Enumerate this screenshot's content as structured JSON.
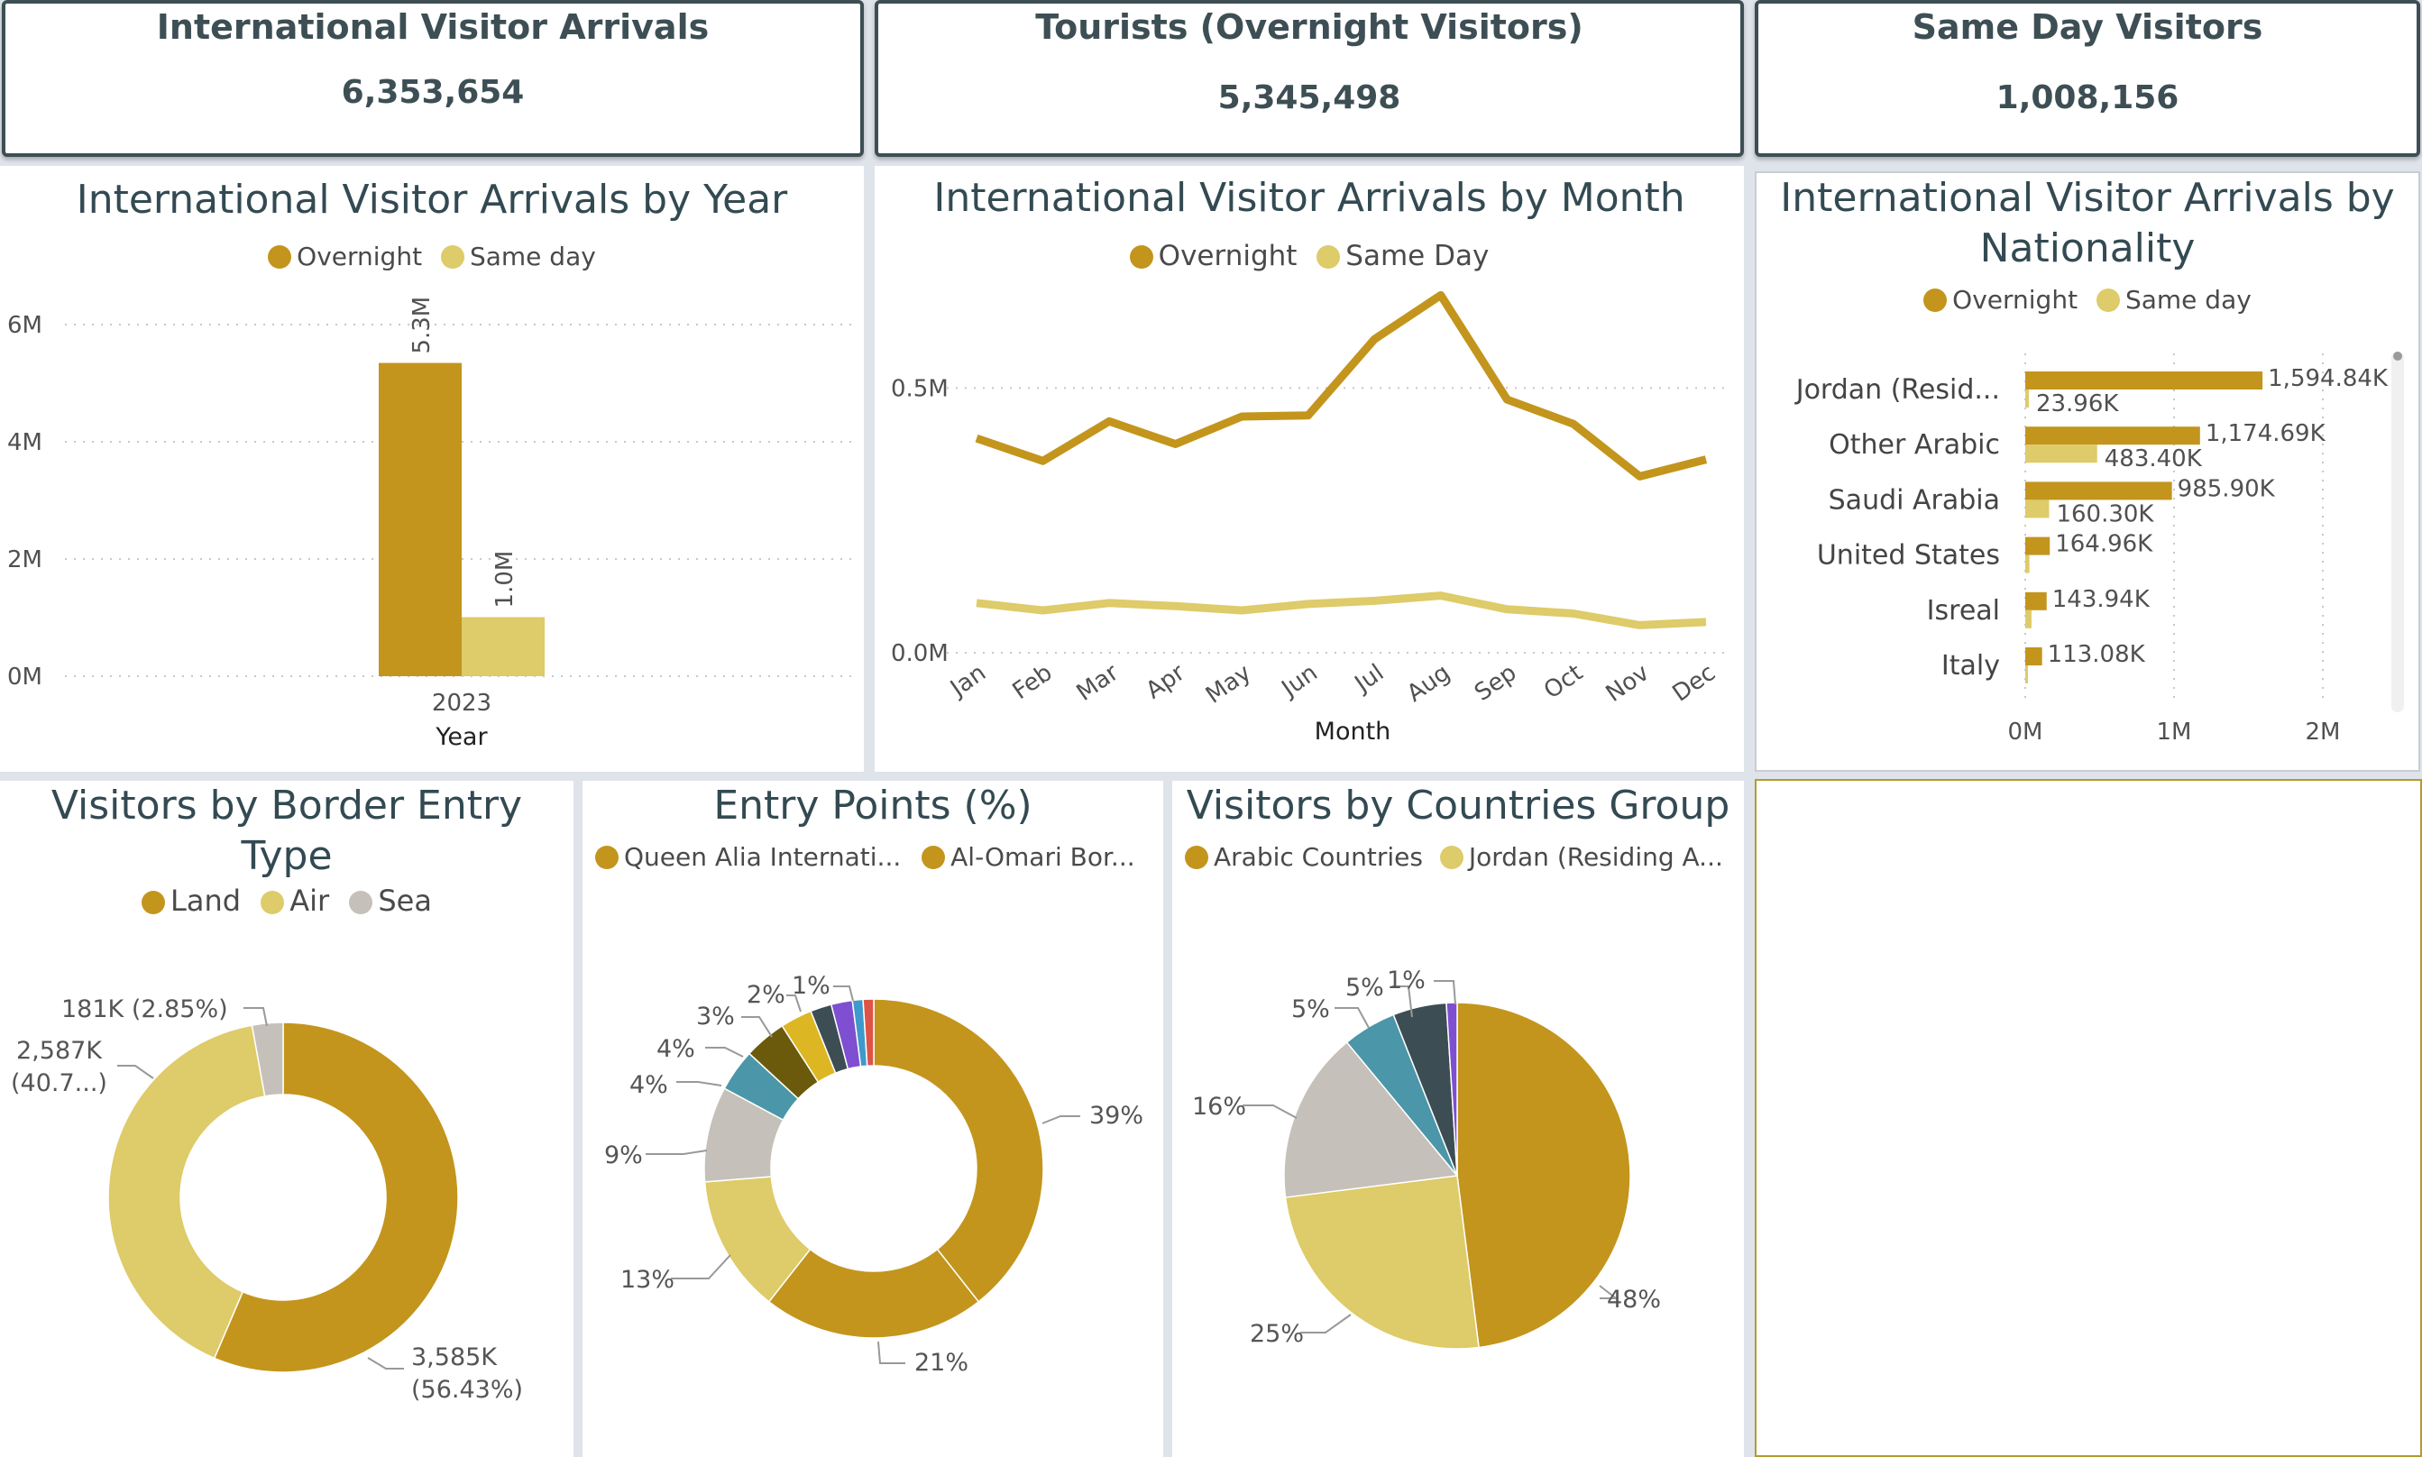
{
  "kpis": [
    {
      "title": "International Visitor Arrivals",
      "value": "6,353,654"
    },
    {
      "title": "Tourists (Overnight Visitors)",
      "value": "5,345,498"
    },
    {
      "title": "Same Day Visitors",
      "value": "1,008,156"
    }
  ],
  "colors": {
    "overnight": "#c3951d",
    "same_day": "#decb69",
    "sea": "#c5c0b9",
    "teal": "#4b96a8",
    "slate": "#3c4d54",
    "olive": "#6b5a0b",
    "gold2": "#ddb624",
    "purple": "#7e4fd0",
    "blue": "#3f99cb",
    "red": "#dd5446"
  },
  "panels": {
    "year": {
      "title": "International Visitor Arrivals by Year",
      "legend": [
        "Overnight",
        "Same day"
      ]
    },
    "month": {
      "title": "International Visitor Arrivals by Month",
      "legend": [
        "Overnight",
        "Same Day"
      ]
    },
    "nationality": {
      "title_line1": "International Visitor Arrivals by",
      "title_line2": "Nationality",
      "legend": [
        "Overnight",
        "Same day"
      ]
    },
    "border": {
      "title_line1": "Visitors by Border Entry",
      "title_line2": "Type",
      "legend": [
        "Land",
        "Air",
        "Sea"
      ]
    },
    "entry": {
      "title": "Entry Points (%)",
      "legend": [
        "Queen Alia Internati...",
        "Al-Omari Bor..."
      ]
    },
    "groups": {
      "title": "Visitors by Countries Group",
      "legend": [
        "Arabic Countries",
        "Jordan (Residing A..."
      ]
    }
  },
  "chart_data": [
    {
      "id": "by_year",
      "type": "bar",
      "title": "International Visitor Arrivals by Year",
      "xlabel": "Year",
      "ylabel": "",
      "categories": [
        "2023"
      ],
      "series": [
        {
          "name": "Overnight",
          "values": [
            5345498
          ],
          "labels": [
            "5.3M"
          ]
        },
        {
          "name": "Same day",
          "values": [
            1008156
          ],
          "labels": [
            "1.0M"
          ]
        }
      ],
      "yticks": [
        "0M",
        "2M",
        "4M",
        "6M"
      ],
      "ylim": [
        0,
        6000000
      ],
      "grid": true,
      "legend": "top-center"
    },
    {
      "id": "by_month",
      "type": "line",
      "title": "International Visitor Arrivals by Month",
      "xlabel": "Month",
      "categories": [
        "Jan",
        "Feb",
        "Mar",
        "Apr",
        "May",
        "Jun",
        "Jul",
        "Aug",
        "Sep",
        "Oct",
        "Nov",
        "Dec"
      ],
      "series": [
        {
          "name": "Overnight",
          "values": [
            405000,
            362000,
            437000,
            394000,
            446000,
            448000,
            592000,
            675000,
            478000,
            432000,
            333000,
            365000
          ]
        },
        {
          "name": "Same Day",
          "values": [
            94000,
            80000,
            94000,
            88000,
            80000,
            92000,
            98000,
            108000,
            82000,
            74000,
            52000,
            58000
          ]
        }
      ],
      "yticks": [
        "0.0M",
        "0.5M"
      ],
      "ylim": [
        0,
        800000
      ],
      "grid": true,
      "legend": "top-center"
    },
    {
      "id": "by_nationality",
      "type": "bar",
      "orientation": "horizontal",
      "title": "International Visitor Arrivals by Nationality",
      "categories": [
        "Jordan (Resid...",
        "Other Arabic",
        "Saudi Arabia",
        "United States",
        "Isreal",
        "Italy"
      ],
      "series": [
        {
          "name": "Overnight",
          "values": [
            1594840,
            1174690,
            985900,
            164960,
            143940,
            113080
          ],
          "labels": [
            "1,594.84K",
            "1,174.69K",
            "985.90K",
            "164.96K",
            "143.94K",
            "113.08K"
          ]
        },
        {
          "name": "Same day",
          "values": [
            23960,
            483400,
            160300,
            28000,
            42000,
            8000
          ],
          "labels": [
            "23.96K",
            "483.40K",
            "160.30K",
            "",
            "",
            ""
          ]
        }
      ],
      "xticks": [
        "0M",
        "1M",
        "2M"
      ],
      "xlim": [
        0,
        2000000
      ],
      "grid": true,
      "legend": "top-center"
    },
    {
      "id": "border_entry",
      "type": "pie",
      "donut": true,
      "title": "Visitors by Border Entry Type",
      "slices": [
        {
          "name": "Land",
          "value": 56.43,
          "label_line1": "3,585K",
          "label_line2": "(56.43%)"
        },
        {
          "name": "Air",
          "value": 40.72,
          "label_line1": "2,587K",
          "label_line2": "(40.7...)"
        },
        {
          "name": "Sea",
          "value": 2.85,
          "label_line1": "181K (2.85%)",
          "label_line2": ""
        }
      ]
    },
    {
      "id": "entry_points",
      "type": "pie",
      "donut": true,
      "title": "Entry Points (%)",
      "slices": [
        {
          "value": 39,
          "label": "39%"
        },
        {
          "value": 21,
          "label": "21%"
        },
        {
          "value": 13,
          "label": "13%"
        },
        {
          "value": 9,
          "label": "9%"
        },
        {
          "value": 4,
          "label": "4%"
        },
        {
          "value": 4,
          "label": "4%"
        },
        {
          "value": 3,
          "label": "3%"
        },
        {
          "value": 2,
          "label": "2%"
        },
        {
          "value": 2,
          "label": ""
        },
        {
          "value": 1,
          "label": "1%"
        },
        {
          "value": 1,
          "label": ""
        }
      ]
    },
    {
      "id": "countries_group",
      "type": "pie",
      "title": "Visitors by Countries Group",
      "slices": [
        {
          "value": 48,
          "label": "48%"
        },
        {
          "value": 25,
          "label": "25%"
        },
        {
          "value": 16,
          "label": "16%"
        },
        {
          "value": 5,
          "label": "5%"
        },
        {
          "value": 5,
          "label": "5%"
        },
        {
          "value": 1,
          "label": "1%"
        }
      ]
    }
  ]
}
